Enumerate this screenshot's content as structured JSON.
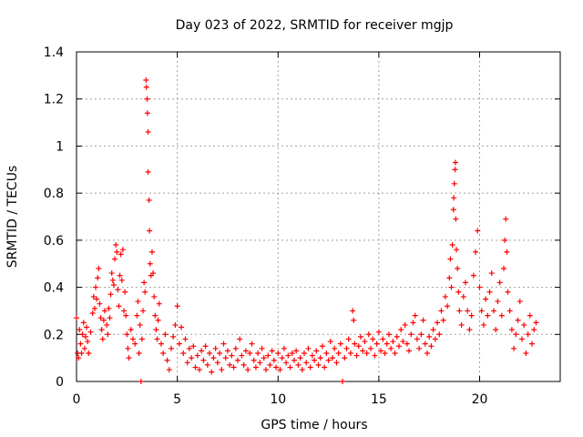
{
  "chart_data": {
    "type": "scatter",
    "title": "Day 023 of 2022, SRMTID for receiver mgjp",
    "xlabel": "GPS time / hours",
    "ylabel": "SRMTID / TECUs",
    "xlim": [
      0,
      24
    ],
    "ylim": [
      0,
      1.4
    ],
    "xticks": [
      0,
      5,
      10,
      15,
      20
    ],
    "xtick_labels": [
      "0",
      "5",
      "10",
      "15",
      "20"
    ],
    "yticks": [
      0,
      0.2,
      0.4,
      0.6,
      0.8,
      1.0,
      1.2,
      1.4
    ],
    "ytick_labels": [
      "0",
      "0.2",
      "0.4",
      "0.6",
      "0.8",
      "1",
      "1.2",
      "1.4"
    ],
    "grid": true,
    "marker": "+",
    "series_color": "#ff0000",
    "series": [
      {
        "name": "SRMTID",
        "points": [
          [
            0.0,
            0.27
          ],
          [
            0.05,
            0.12
          ],
          [
            0.1,
            0.1
          ],
          [
            0.15,
            0.22
          ],
          [
            0.2,
            0.16
          ],
          [
            0.25,
            0.12
          ],
          [
            0.3,
            0.2
          ],
          [
            0.35,
            0.25
          ],
          [
            0.4,
            0.14
          ],
          [
            0.45,
            0.19
          ],
          [
            0.5,
            0.23
          ],
          [
            0.55,
            0.17
          ],
          [
            0.6,
            0.12
          ],
          [
            0.7,
            0.21
          ],
          [
            0.8,
            0.29
          ],
          [
            0.85,
            0.36
          ],
          [
            0.9,
            0.31
          ],
          [
            0.95,
            0.4
          ],
          [
            1.0,
            0.35
          ],
          [
            1.05,
            0.44
          ],
          [
            1.1,
            0.48
          ],
          [
            1.15,
            0.33
          ],
          [
            1.2,
            0.27
          ],
          [
            1.25,
            0.22
          ],
          [
            1.3,
            0.18
          ],
          [
            1.35,
            0.26
          ],
          [
            1.4,
            0.3
          ],
          [
            1.5,
            0.24
          ],
          [
            1.55,
            0.2
          ],
          [
            1.6,
            0.31
          ],
          [
            1.65,
            0.27
          ],
          [
            1.7,
            0.37
          ],
          [
            1.75,
            0.46
          ],
          [
            1.8,
            0.43
          ],
          [
            1.85,
            0.41
          ],
          [
            1.9,
            0.52
          ],
          [
            1.95,
            0.58
          ],
          [
            2.0,
            0.55
          ],
          [
            2.05,
            0.39
          ],
          [
            2.1,
            0.32
          ],
          [
            2.15,
            0.45
          ],
          [
            2.2,
            0.54
          ],
          [
            2.25,
            0.43
          ],
          [
            2.3,
            0.56
          ],
          [
            2.35,
            0.3
          ],
          [
            2.4,
            0.38
          ],
          [
            2.45,
            0.28
          ],
          [
            2.5,
            0.2
          ],
          [
            2.55,
            0.14
          ],
          [
            2.6,
            0.1
          ],
          [
            2.7,
            0.22
          ],
          [
            2.8,
            0.18
          ],
          [
            2.9,
            0.16
          ],
          [
            3.0,
            0.28
          ],
          [
            3.05,
            0.34
          ],
          [
            3.1,
            0.12
          ],
          [
            3.15,
            0.24
          ],
          [
            3.2,
            0.0
          ],
          [
            3.25,
            0.18
          ],
          [
            3.3,
            0.3
          ],
          [
            3.35,
            0.42
          ],
          [
            3.4,
            0.38
          ],
          [
            3.45,
            1.28
          ],
          [
            3.47,
            1.25
          ],
          [
            3.5,
            1.2
          ],
          [
            3.52,
            1.14
          ],
          [
            3.55,
            1.06
          ],
          [
            3.55,
            0.89
          ],
          [
            3.6,
            0.77
          ],
          [
            3.62,
            0.64
          ],
          [
            3.65,
            0.5
          ],
          [
            3.7,
            0.45
          ],
          [
            3.75,
            0.55
          ],
          [
            3.8,
            0.46
          ],
          [
            3.85,
            0.36
          ],
          [
            3.9,
            0.28
          ],
          [
            3.95,
            0.22
          ],
          [
            4.0,
            0.18
          ],
          [
            4.05,
            0.26
          ],
          [
            4.1,
            0.33
          ],
          [
            4.2,
            0.16
          ],
          [
            4.3,
            0.12
          ],
          [
            4.4,
            0.2
          ],
          [
            4.5,
            0.09
          ],
          [
            4.6,
            0.05
          ],
          [
            4.7,
            0.14
          ],
          [
            4.8,
            0.19
          ],
          [
            4.9,
            0.24
          ],
          [
            5.0,
            0.32
          ],
          [
            5.1,
            0.16
          ],
          [
            5.2,
            0.23
          ],
          [
            5.3,
            0.12
          ],
          [
            5.4,
            0.18
          ],
          [
            5.5,
            0.08
          ],
          [
            5.6,
            0.14
          ],
          [
            5.7,
            0.1
          ],
          [
            5.8,
            0.15
          ],
          [
            5.9,
            0.06
          ],
          [
            6.0,
            0.11
          ],
          [
            6.1,
            0.05
          ],
          [
            6.2,
            0.13
          ],
          [
            6.3,
            0.09
          ],
          [
            6.4,
            0.15
          ],
          [
            6.5,
            0.07
          ],
          [
            6.6,
            0.12
          ],
          [
            6.7,
            0.04
          ],
          [
            6.8,
            0.1
          ],
          [
            6.9,
            0.14
          ],
          [
            7.0,
            0.08
          ],
          [
            7.1,
            0.12
          ],
          [
            7.2,
            0.05
          ],
          [
            7.3,
            0.16
          ],
          [
            7.4,
            0.1
          ],
          [
            7.5,
            0.13
          ],
          [
            7.6,
            0.07
          ],
          [
            7.7,
            0.11
          ],
          [
            7.8,
            0.06
          ],
          [
            7.9,
            0.14
          ],
          [
            8.0,
            0.09
          ],
          [
            8.1,
            0.18
          ],
          [
            8.2,
            0.11
          ],
          [
            8.3,
            0.07
          ],
          [
            8.4,
            0.13
          ],
          [
            8.5,
            0.05
          ],
          [
            8.6,
            0.12
          ],
          [
            8.7,
            0.16
          ],
          [
            8.8,
            0.09
          ],
          [
            8.9,
            0.06
          ],
          [
            9.0,
            0.12
          ],
          [
            9.1,
            0.08
          ],
          [
            9.2,
            0.14
          ],
          [
            9.3,
            0.1
          ],
          [
            9.4,
            0.05
          ],
          [
            9.5,
            0.11
          ],
          [
            9.6,
            0.07
          ],
          [
            9.7,
            0.13
          ],
          [
            9.8,
            0.09
          ],
          [
            9.9,
            0.06
          ],
          [
            10.0,
            0.12
          ],
          [
            10.1,
            0.05
          ],
          [
            10.2,
            0.1
          ],
          [
            10.3,
            0.14
          ],
          [
            10.4,
            0.08
          ],
          [
            10.5,
            0.11
          ],
          [
            10.6,
            0.06
          ],
          [
            10.7,
            0.12
          ],
          [
            10.8,
            0.09
          ],
          [
            10.9,
            0.13
          ],
          [
            11.0,
            0.07
          ],
          [
            11.1,
            0.1
          ],
          [
            11.2,
            0.05
          ],
          [
            11.3,
            0.12
          ],
          [
            11.4,
            0.08
          ],
          [
            11.5,
            0.14
          ],
          [
            11.6,
            0.06
          ],
          [
            11.7,
            0.11
          ],
          [
            11.8,
            0.09
          ],
          [
            11.9,
            0.13
          ],
          [
            12.0,
            0.07
          ],
          [
            12.1,
            0.1
          ],
          [
            12.2,
            0.15
          ],
          [
            12.3,
            0.06
          ],
          [
            12.4,
            0.12
          ],
          [
            12.5,
            0.09
          ],
          [
            12.6,
            0.17
          ],
          [
            12.7,
            0.1
          ],
          [
            12.8,
            0.14
          ],
          [
            12.9,
            0.08
          ],
          [
            13.0,
            0.12
          ],
          [
            13.1,
            0.16
          ],
          [
            13.2,
            0.0
          ],
          [
            13.3,
            0.1
          ],
          [
            13.4,
            0.14
          ],
          [
            13.5,
            0.18
          ],
          [
            13.6,
            0.12
          ],
          [
            13.7,
            0.3
          ],
          [
            13.75,
            0.26
          ],
          [
            13.8,
            0.16
          ],
          [
            13.9,
            0.11
          ],
          [
            14.0,
            0.15
          ],
          [
            14.1,
            0.19
          ],
          [
            14.2,
            0.13
          ],
          [
            14.3,
            0.17
          ],
          [
            14.4,
            0.12
          ],
          [
            14.5,
            0.2
          ],
          [
            14.6,
            0.14
          ],
          [
            14.7,
            0.18
          ],
          [
            14.8,
            0.11
          ],
          [
            14.9,
            0.16
          ],
          [
            15.0,
            0.21
          ],
          [
            15.1,
            0.13
          ],
          [
            15.2,
            0.18
          ],
          [
            15.3,
            0.12
          ],
          [
            15.4,
            0.16
          ],
          [
            15.5,
            0.2
          ],
          [
            15.6,
            0.14
          ],
          [
            15.7,
            0.17
          ],
          [
            15.8,
            0.12
          ],
          [
            15.9,
            0.19
          ],
          [
            16.0,
            0.15
          ],
          [
            16.1,
            0.22
          ],
          [
            16.2,
            0.17
          ],
          [
            16.3,
            0.24
          ],
          [
            16.4,
            0.16
          ],
          [
            16.5,
            0.13
          ],
          [
            16.6,
            0.2
          ],
          [
            16.7,
            0.25
          ],
          [
            16.8,
            0.28
          ],
          [
            16.9,
            0.18
          ],
          [
            17.0,
            0.14
          ],
          [
            17.1,
            0.2
          ],
          [
            17.2,
            0.26
          ],
          [
            17.3,
            0.16
          ],
          [
            17.4,
            0.12
          ],
          [
            17.5,
            0.19
          ],
          [
            17.6,
            0.15
          ],
          [
            17.7,
            0.22
          ],
          [
            17.8,
            0.18
          ],
          [
            17.9,
            0.25
          ],
          [
            18.0,
            0.2
          ],
          [
            18.1,
            0.3
          ],
          [
            18.2,
            0.26
          ],
          [
            18.3,
            0.36
          ],
          [
            18.4,
            0.32
          ],
          [
            18.5,
            0.44
          ],
          [
            18.55,
            0.52
          ],
          [
            18.6,
            0.4
          ],
          [
            18.65,
            0.58
          ],
          [
            18.7,
            0.73
          ],
          [
            18.72,
            0.78
          ],
          [
            18.75,
            0.84
          ],
          [
            18.78,
            0.9
          ],
          [
            18.8,
            0.93
          ],
          [
            18.82,
            0.69
          ],
          [
            18.85,
            0.56
          ],
          [
            18.9,
            0.48
          ],
          [
            18.95,
            0.38
          ],
          [
            19.0,
            0.3
          ],
          [
            19.1,
            0.24
          ],
          [
            19.2,
            0.36
          ],
          [
            19.3,
            0.42
          ],
          [
            19.4,
            0.3
          ],
          [
            19.5,
            0.22
          ],
          [
            19.6,
            0.28
          ],
          [
            19.7,
            0.45
          ],
          [
            19.8,
            0.55
          ],
          [
            19.9,
            0.64
          ],
          [
            20.0,
            0.4
          ],
          [
            20.1,
            0.3
          ],
          [
            20.2,
            0.24
          ],
          [
            20.3,
            0.35
          ],
          [
            20.4,
            0.28
          ],
          [
            20.5,
            0.38
          ],
          [
            20.6,
            0.46
          ],
          [
            20.7,
            0.3
          ],
          [
            20.8,
            0.22
          ],
          [
            20.9,
            0.34
          ],
          [
            21.0,
            0.42
          ],
          [
            21.1,
            0.28
          ],
          [
            21.2,
            0.48
          ],
          [
            21.25,
            0.6
          ],
          [
            21.3,
            0.69
          ],
          [
            21.35,
            0.55
          ],
          [
            21.4,
            0.38
          ],
          [
            21.5,
            0.3
          ],
          [
            21.6,
            0.22
          ],
          [
            21.7,
            0.14
          ],
          [
            21.8,
            0.2
          ],
          [
            21.9,
            0.26
          ],
          [
            22.0,
            0.34
          ],
          [
            22.1,
            0.18
          ],
          [
            22.2,
            0.24
          ],
          [
            22.3,
            0.12
          ],
          [
            22.4,
            0.2
          ],
          [
            22.5,
            0.28
          ],
          [
            22.6,
            0.16
          ],
          [
            22.7,
            0.22
          ],
          [
            22.8,
            0.25
          ]
        ]
      }
    ]
  }
}
